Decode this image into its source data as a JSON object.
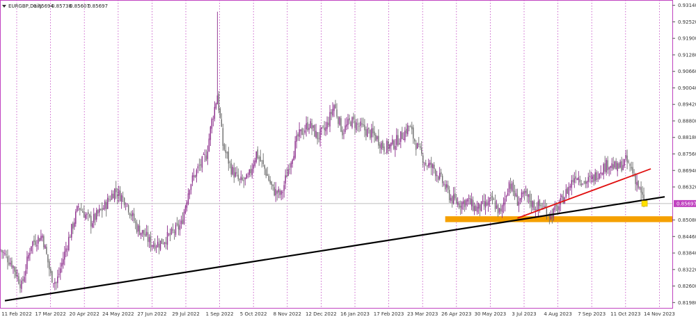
{
  "header": {
    "symbol": "EURGBP,Daily",
    "open": "0.85694",
    "high": "0.85738",
    "low": "0.85607",
    "close": "0.85697"
  },
  "colors": {
    "background": "#ffffff",
    "frame": "#c042c0",
    "vertical_grid": "#c042c0",
    "bull_candle": "#8a2a8a",
    "bear_candle": "#6e6e6e",
    "support_trendline": "#000000",
    "short_trendline": "#e01010",
    "support_zone": "#f5a000",
    "price_tag": "#c042c0",
    "marker": "#ffe000"
  },
  "chart_data": {
    "type": "candlestick",
    "title": "EURGBP,Daily",
    "x_tick_labels": [
      "11 Feb 2022",
      "17 Mar 2022",
      "20 Apr 2022",
      "24 May 2022",
      "27 Jun 2022",
      "29 Jul 2022",
      "1 Sep 2022",
      "5 Oct 2022",
      "8 Nov 2022",
      "12 Dec 2022",
      "16 Jan 2023",
      "17 Feb 2023",
      "23 Mar 2023",
      "26 Apr 2023",
      "30 May 2023",
      "3 Jul 2023",
      "4 Aug 2023",
      "7 Sep 2023",
      "11 Oct 2023",
      "14 Nov 2023"
    ],
    "y_tick_labels": [
      "0.93140",
      "0.92520",
      "0.91900",
      "0.91280",
      "0.90660",
      "0.90040",
      "0.89420",
      "0.88800",
      "0.88180",
      "0.87560",
      "0.86940",
      "0.86320",
      "0.85697",
      "0.85080",
      "0.84460",
      "0.83840",
      "0.83220",
      "0.82600",
      "0.81980"
    ],
    "ylim": [
      0.8178,
      0.9334
    ],
    "current_price": 0.85697,
    "price_path": [
      {
        "i": 0,
        "p": 0.8395
      },
      {
        "i": 8,
        "p": 0.8345
      },
      {
        "i": 15,
        "p": 0.826
      },
      {
        "i": 22,
        "p": 0.842
      },
      {
        "i": 30,
        "p": 0.845
      },
      {
        "i": 36,
        "p": 0.83
      },
      {
        "i": 40,
        "p": 0.827
      },
      {
        "i": 48,
        "p": 0.842
      },
      {
        "i": 56,
        "p": 0.856
      },
      {
        "i": 65,
        "p": 0.85
      },
      {
        "i": 75,
        "p": 0.856
      },
      {
        "i": 82,
        "p": 0.862
      },
      {
        "i": 90,
        "p": 0.858
      },
      {
        "i": 98,
        "p": 0.848
      },
      {
        "i": 104,
        "p": 0.845
      },
      {
        "i": 108,
        "p": 0.842
      },
      {
        "i": 114,
        "p": 0.842
      },
      {
        "i": 122,
        "p": 0.845
      },
      {
        "i": 130,
        "p": 0.849
      },
      {
        "i": 136,
        "p": 0.864
      },
      {
        "i": 142,
        "p": 0.87
      },
      {
        "i": 148,
        "p": 0.875
      },
      {
        "i": 152,
        "p": 0.888
      },
      {
        "i": 156,
        "p": 0.898
      },
      {
        "i": 160,
        "p": 0.879
      },
      {
        "i": 166,
        "p": 0.87
      },
      {
        "i": 172,
        "p": 0.865
      },
      {
        "i": 178,
        "p": 0.866
      },
      {
        "i": 184,
        "p": 0.876
      },
      {
        "i": 190,
        "p": 0.87
      },
      {
        "i": 196,
        "p": 0.862
      },
      {
        "i": 202,
        "p": 0.86
      },
      {
        "i": 208,
        "p": 0.872
      },
      {
        "i": 214,
        "p": 0.882
      },
      {
        "i": 222,
        "p": 0.887
      },
      {
        "i": 228,
        "p": 0.882
      },
      {
        "i": 234,
        "p": 0.885
      },
      {
        "i": 240,
        "p": 0.894
      },
      {
        "i": 246,
        "p": 0.884
      },
      {
        "i": 252,
        "p": 0.888
      },
      {
        "i": 258,
        "p": 0.886
      },
      {
        "i": 264,
        "p": 0.884
      },
      {
        "i": 270,
        "p": 0.882
      },
      {
        "i": 276,
        "p": 0.878
      },
      {
        "i": 282,
        "p": 0.879
      },
      {
        "i": 288,
        "p": 0.882
      },
      {
        "i": 294,
        "p": 0.886
      },
      {
        "i": 300,
        "p": 0.878
      },
      {
        "i": 306,
        "p": 0.872
      },
      {
        "i": 312,
        "p": 0.87
      },
      {
        "i": 318,
        "p": 0.865
      },
      {
        "i": 324,
        "p": 0.859
      },
      {
        "i": 330,
        "p": 0.857
      },
      {
        "i": 336,
        "p": 0.858
      },
      {
        "i": 342,
        "p": 0.855
      },
      {
        "i": 348,
        "p": 0.856
      },
      {
        "i": 354,
        "p": 0.858
      },
      {
        "i": 360,
        "p": 0.853
      },
      {
        "i": 366,
        "p": 0.865
      },
      {
        "i": 372,
        "p": 0.858
      },
      {
        "i": 378,
        "p": 0.86
      },
      {
        "i": 384,
        "p": 0.856
      },
      {
        "i": 390,
        "p": 0.856
      },
      {
        "i": 396,
        "p": 0.8525
      },
      {
        "i": 402,
        "p": 0.856
      },
      {
        "i": 408,
        "p": 0.862
      },
      {
        "i": 414,
        "p": 0.868
      },
      {
        "i": 420,
        "p": 0.865
      },
      {
        "i": 426,
        "p": 0.866
      },
      {
        "i": 432,
        "p": 0.87
      },
      {
        "i": 438,
        "p": 0.872
      },
      {
        "i": 444,
        "p": 0.87
      },
      {
        "i": 450,
        "p": 0.873
      },
      {
        "i": 454,
        "p": 0.87
      },
      {
        "i": 458,
        "p": 0.865
      },
      {
        "i": 463,
        "p": 0.857
      }
    ],
    "support_trendline": {
      "from": {
        "i": 3,
        "p": 0.8205
      },
      "to": {
        "i": 478,
        "p": 0.8595
      }
    },
    "short_trendline": {
      "from": {
        "i": 372,
        "p": 0.8515
      },
      "to": {
        "i": 468,
        "p": 0.87
      }
    },
    "support_zone": {
      "from_i": 320,
      "to_i": 484,
      "top": 0.8522,
      "bottom": 0.85
    }
  }
}
